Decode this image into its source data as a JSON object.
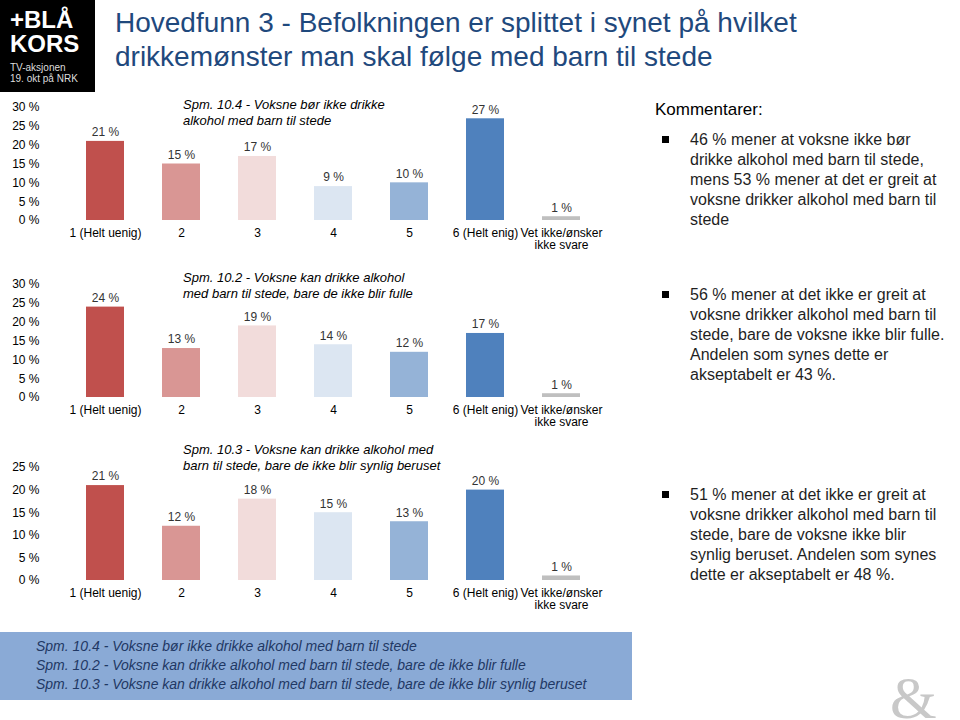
{
  "header": {
    "logo": [
      "+BLÅ",
      "KORS"
    ],
    "logo_sub": [
      "TV-aksjonen",
      "19. okt på NRK"
    ],
    "title": "Hovedfunn 3 - Befolkningen er splittet i synet på hvilket drikkemønster man skal følge med barn til stede"
  },
  "chart_data": [
    {
      "type": "bar",
      "title": "Spm. 10.4 - Voksne bør ikke drikke alkohol med barn til stede",
      "categories": [
        "1 (Helt uenig)",
        "2",
        "3",
        "4",
        "5",
        "6 (Helt enig)",
        "Vet ikke/ønsker ikke svare"
      ],
      "values": [
        21,
        15,
        17,
        9,
        10,
        27,
        1
      ],
      "value_labels": [
        "21 %",
        "15 %",
        "17 %",
        "9 %",
        "10 %",
        "27 %",
        "1 %"
      ],
      "colors": [
        "#c0504d",
        "#d99694",
        "#f2dcdb",
        "#dce6f2",
        "#95b3d7",
        "#4f81bd",
        "#bfbfbf"
      ],
      "ylim": [
        0,
        30
      ],
      "yticks": [
        {
          "value": 0,
          "label": "0 %"
        },
        {
          "value": 5,
          "label": "5 %"
        },
        {
          "value": 10,
          "label": "10 %"
        },
        {
          "value": 15,
          "label": "15 %"
        },
        {
          "value": 20,
          "label": "20 %"
        },
        {
          "value": 25,
          "label": "25 %"
        },
        {
          "value": 30,
          "label": "30 %"
        }
      ],
      "grid": false,
      "data_labels": true
    },
    {
      "type": "bar",
      "title": "Spm. 10.2 - Voksne kan drikke alkohol med barn til stede, bare de ikke blir fulle",
      "categories": [
        "1 (Helt uenig)",
        "2",
        "3",
        "4",
        "5",
        "6 (Helt enig)",
        "Vet ikke/ønsker ikke svare"
      ],
      "values": [
        24,
        13,
        19,
        14,
        12,
        17,
        1
      ],
      "value_labels": [
        "24 %",
        "13 %",
        "19 %",
        "14 %",
        "12 %",
        "17 %",
        "1 %"
      ],
      "colors": [
        "#c0504d",
        "#d99694",
        "#f2dcdb",
        "#dce6f2",
        "#95b3d7",
        "#4f81bd",
        "#bfbfbf"
      ],
      "ylim": [
        0,
        30
      ],
      "yticks": [
        {
          "value": 0,
          "label": "0 %"
        },
        {
          "value": 5,
          "label": "5 %"
        },
        {
          "value": 10,
          "label": "10 %"
        },
        {
          "value": 15,
          "label": "15 %"
        },
        {
          "value": 20,
          "label": "20 %"
        },
        {
          "value": 25,
          "label": "25 %"
        },
        {
          "value": 30,
          "label": "30 %"
        }
      ],
      "grid": false,
      "data_labels": true
    },
    {
      "type": "bar",
      "title": "Spm. 10.3 - Voksne kan drikke alkohol med barn til stede, bare de ikke blir synlig beruset",
      "categories": [
        "1 (Helt uenig)",
        "2",
        "3",
        "4",
        "5",
        "6 (Helt enig)",
        "Vet ikke/ønsker ikke svare"
      ],
      "values": [
        21,
        12,
        18,
        15,
        13,
        20,
        1
      ],
      "value_labels": [
        "21 %",
        "12 %",
        "18 %",
        "15 %",
        "13 %",
        "20 %",
        "1 %"
      ],
      "colors": [
        "#c0504d",
        "#d99694",
        "#f2dcdb",
        "#dce6f2",
        "#95b3d7",
        "#4f81bd",
        "#bfbfbf"
      ],
      "ylim": [
        0,
        25
      ],
      "yticks": [
        {
          "value": 0,
          "label": "0 %"
        },
        {
          "value": 5,
          "label": "5 %"
        },
        {
          "value": 10,
          "label": "10 %"
        },
        {
          "value": 15,
          "label": "15 %"
        },
        {
          "value": 20,
          "label": "20 %"
        },
        {
          "value": 25,
          "label": "25 %"
        }
      ],
      "grid": false,
      "data_labels": true
    }
  ],
  "comments": {
    "heading": "Kommentarer:",
    "items": [
      "46 % mener at voksne ikke bør drikke alkohol med barn til stede, mens 53 % mener at det er greit at voksne drikker alkohol med barn til stede",
      "56 % mener at det ikke er greit at voksne drikker alkohol med barn til stede, bare de voksne ikke blir fulle. Andelen som synes dette er akseptabelt er 43 %.",
      "51 % mener at det ikke er greit at voksne drikker alkohol med barn til stede, bare de voksne ikke blir synlig beruset. Andelen som synes dette er akseptabelt er 48 %."
    ]
  },
  "footer": [
    "Spm. 10.4 - Voksne bør ikke drikke alkohol med barn til stede",
    "Spm. 10.2 - Voksne kan drikke alkohol med barn til stede, bare de ikke blir fulle",
    "Spm. 10.3 - Voksne kan drikke alkohol med barn til stede, bare de ikke blir synlig beruset"
  ],
  "corner_mark": "&"
}
